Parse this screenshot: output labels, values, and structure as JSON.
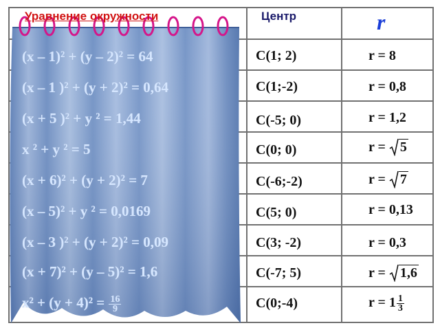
{
  "header": {
    "title": "Уравнение окружности",
    "center_label": "Центр",
    "radius_label": "r"
  },
  "rows": [
    {
      "equation": "(x – 1)² + (y – 2)² = 64",
      "center": "C(1; 2)",
      "radius": "r = 8"
    },
    {
      "equation": "(x – 1 )² + (y + 2)² = 0,64",
      "center": "C(1;-2)",
      "radius": "r = 0,8"
    },
    {
      "equation": "(x + 5 )² + y ² = 1,44",
      "center": "C(-5; 0)",
      "radius": "r = 1,2"
    },
    {
      "equation": "x ² + y ² = 5",
      "center": "C(0; 0)",
      "radius_prefix": "r =",
      "radius_sqrt": "5"
    },
    {
      "equation": "(x + 6)² + (y + 2)² = 7",
      "center": "C(-6;-2)",
      "radius_prefix": "r =",
      "radius_sqrt": "7"
    },
    {
      "equation": "(x – 5)² + y ² = 0,0169",
      "center": "C(5; 0)",
      "radius": "r = 0,13"
    },
    {
      "equation": "(x – 3 )² + (y + 2)² = 0,09",
      "center": "C(3; -2)",
      "radius": "r = 0,3"
    },
    {
      "equation": "(x + 7)² + (y – 5)² = 1,6",
      "center": "C(-7; 5)",
      "radius_prefix": "r =",
      "radius_sqrt": "1,6"
    },
    {
      "equation": "x² + (y + 4)² =",
      "equation_frac_num": "16",
      "equation_frac_den": "9",
      "center": "C(0;-4)",
      "radius_prefix": "r = 1",
      "radius_frac_num": "1",
      "radius_frac_den": "3"
    }
  ],
  "colors": {
    "curtain": "#8fa9d0",
    "curtain_dark": "#4b6ea8",
    "rings": "#d5158a",
    "title": "#d11313",
    "r_header": "#1b3fd8"
  },
  "icons": [
    "curtain-rings-icon",
    "curtain-icon"
  ]
}
